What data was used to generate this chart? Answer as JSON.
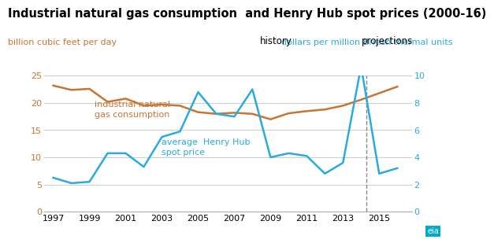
{
  "title": "Industrial natural gas consumption  and Henry Hub spot prices (2000-16)",
  "left_ylabel": "billion cubic feet per day",
  "right_ylabel": "dollars per million British thermal units",
  "left_color": "#c87533",
  "right_color": "#29abe2",
  "history_label": "history",
  "projections_label": "projections",
  "divider_year": 2014.3,
  "gas_label": "industrial natural\ngas consumption",
  "price_label": "average  Henry Hub\nspot price",
  "gas_years": [
    1997,
    1998,
    1999,
    2000,
    2001,
    2002,
    2003,
    2004,
    2005,
    2006,
    2007,
    2008,
    2009,
    2010,
    2011,
    2012,
    2013,
    2014,
    2015,
    2016
  ],
  "gas_values": [
    23.2,
    22.4,
    22.6,
    20.2,
    20.8,
    19.5,
    19.7,
    19.5,
    18.3,
    18.0,
    18.2,
    18.0,
    17.0,
    18.1,
    18.5,
    18.8,
    19.5,
    20.6,
    21.8,
    23.0
  ],
  "price_years": [
    1997,
    1998,
    1999,
    2000,
    2001,
    2002,
    2003,
    2004,
    2005,
    2006,
    2007,
    2008,
    2009,
    2010,
    2011,
    2012,
    2013,
    2014,
    2015,
    2016
  ],
  "price_values": [
    2.5,
    2.1,
    2.2,
    4.3,
    4.3,
    3.3,
    5.5,
    5.9,
    8.8,
    7.2,
    7.0,
    9.0,
    4.0,
    4.3,
    4.1,
    2.8,
    3.6,
    10.7,
    2.8,
    3.2
  ],
  "left_ylim": [
    0,
    25
  ],
  "right_ylim": [
    0,
    10
  ],
  "left_yticks": [
    0,
    5,
    10,
    15,
    20,
    25
  ],
  "right_yticks": [
    0,
    2,
    4,
    6,
    8,
    10
  ],
  "xlim": [
    1996.5,
    2016.8
  ],
  "xticks": [
    1997,
    1999,
    2001,
    2003,
    2005,
    2007,
    2009,
    2011,
    2013,
    2015
  ],
  "background_color": "#ffffff",
  "grid_color": "#cccccc",
  "title_fontsize": 10.5,
  "label_fontsize": 8,
  "tick_fontsize": 8,
  "annotation_fontsize": 8.5,
  "line_label_fontsize": 8
}
